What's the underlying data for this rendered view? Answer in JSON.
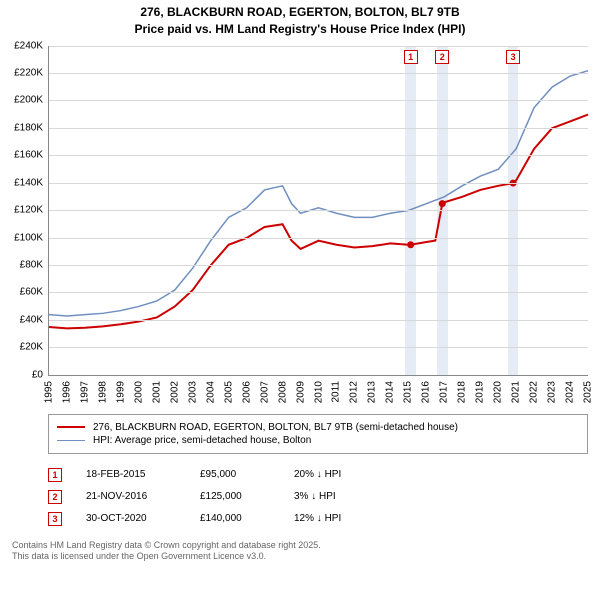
{
  "title": {
    "line1": "276, BLACKBURN ROAD, EGERTON, BOLTON, BL7 9TB",
    "line2": "Price paid vs. HM Land Registry's House Price Index (HPI)"
  },
  "chart": {
    "type": "line",
    "background_color": "#ffffff",
    "grid_color": "#d8d8d8",
    "axis_color": "#888888",
    "label_fontsize": 10,
    "x": {
      "min": 1995,
      "max": 2025,
      "ticks": [
        1995,
        1996,
        1997,
        1998,
        1999,
        2000,
        2001,
        2002,
        2003,
        2004,
        2005,
        2006,
        2007,
        2008,
        2009,
        2010,
        2011,
        2012,
        2013,
        2014,
        2015,
        2016,
        2017,
        2018,
        2019,
        2020,
        2021,
        2022,
        2023,
        2024,
        2025
      ]
    },
    "y": {
      "min": 0,
      "max": 240000,
      "ticks": [
        0,
        20000,
        40000,
        60000,
        80000,
        100000,
        120000,
        140000,
        160000,
        180000,
        200000,
        220000,
        240000
      ],
      "tick_labels": [
        "£0",
        "£20K",
        "£40K",
        "£60K",
        "£80K",
        "£100K",
        "£120K",
        "£140K",
        "£160K",
        "£180K",
        "£200K",
        "£220K",
        "£240K"
      ]
    },
    "series": [
      {
        "id": "price_paid",
        "label": "276, BLACKBURN ROAD, EGERTON, BOLTON, BL7 9TB (semi-detached house)",
        "color": "#cc0000",
        "line_width": 2,
        "points": [
          [
            1995,
            35000
          ],
          [
            1996,
            34000
          ],
          [
            1997,
            34500
          ],
          [
            1998,
            35500
          ],
          [
            1999,
            37000
          ],
          [
            2000,
            39000
          ],
          [
            2001,
            42000
          ],
          [
            2002,
            50000
          ],
          [
            2003,
            62000
          ],
          [
            2004,
            80000
          ],
          [
            2005,
            95000
          ],
          [
            2006,
            100000
          ],
          [
            2007,
            108000
          ],
          [
            2008,
            110000
          ],
          [
            2008.5,
            98000
          ],
          [
            2009,
            92000
          ],
          [
            2010,
            98000
          ],
          [
            2011,
            95000
          ],
          [
            2012,
            93000
          ],
          [
            2013,
            94000
          ],
          [
            2014,
            96000
          ],
          [
            2015,
            95000
          ],
          [
            2015.13,
            95000
          ],
          [
            2016,
            97000
          ],
          [
            2016.5,
            98000
          ],
          [
            2016.89,
            125000
          ],
          [
            2017,
            126000
          ],
          [
            2018,
            130000
          ],
          [
            2019,
            135000
          ],
          [
            2020,
            138000
          ],
          [
            2020.83,
            140000
          ],
          [
            2021,
            142000
          ],
          [
            2022,
            165000
          ],
          [
            2023,
            180000
          ],
          [
            2024,
            185000
          ],
          [
            2025,
            190000
          ]
        ]
      },
      {
        "id": "hpi",
        "label": "HPI: Average price, semi-detached house, Bolton",
        "color": "#6f8fc0",
        "line_width": 1.5,
        "points": [
          [
            1995,
            44000
          ],
          [
            1996,
            43000
          ],
          [
            1997,
            44000
          ],
          [
            1998,
            45000
          ],
          [
            1999,
            47000
          ],
          [
            2000,
            50000
          ],
          [
            2001,
            54000
          ],
          [
            2002,
            62000
          ],
          [
            2003,
            78000
          ],
          [
            2004,
            98000
          ],
          [
            2005,
            115000
          ],
          [
            2006,
            122000
          ],
          [
            2007,
            135000
          ],
          [
            2008,
            138000
          ],
          [
            2008.5,
            125000
          ],
          [
            2009,
            118000
          ],
          [
            2010,
            122000
          ],
          [
            2011,
            118000
          ],
          [
            2012,
            115000
          ],
          [
            2013,
            115000
          ],
          [
            2014,
            118000
          ],
          [
            2015,
            120000
          ],
          [
            2016,
            125000
          ],
          [
            2017,
            130000
          ],
          [
            2018,
            138000
          ],
          [
            2019,
            145000
          ],
          [
            2020,
            150000
          ],
          [
            2021,
            165000
          ],
          [
            2022,
            195000
          ],
          [
            2023,
            210000
          ],
          [
            2024,
            218000
          ],
          [
            2025,
            222000
          ]
        ]
      }
    ],
    "sale_markers": [
      {
        "n": 1,
        "x": 2015.13,
        "y": 95000
      },
      {
        "n": 2,
        "x": 2016.89,
        "y": 125000
      },
      {
        "n": 3,
        "x": 2020.83,
        "y": 140000
      }
    ],
    "marker_band_color": "#e5ecf5",
    "marker_band_width_years": 0.6,
    "flag_border_color": "#cc0000"
  },
  "legend": {
    "rows": [
      {
        "color": "#cc0000",
        "width": 2,
        "label": "276, BLACKBURN ROAD, EGERTON, BOLTON, BL7 9TB (semi-detached house)"
      },
      {
        "color": "#6f8fc0",
        "width": 1.5,
        "label": "HPI: Average price, semi-detached house, Bolton"
      }
    ]
  },
  "sales_table": {
    "rows": [
      {
        "n": "1",
        "date": "18-FEB-2015",
        "price": "£95,000",
        "diff": "20% ↓ HPI"
      },
      {
        "n": "2",
        "date": "21-NOV-2016",
        "price": "£125,000",
        "diff": "3% ↓ HPI"
      },
      {
        "n": "3",
        "date": "30-OCT-2020",
        "price": "£140,000",
        "diff": "12% ↓ HPI"
      }
    ]
  },
  "footer": {
    "line1": "Contains HM Land Registry data © Crown copyright and database right 2025.",
    "line2": "This data is licensed under the Open Government Licence v3.0."
  }
}
